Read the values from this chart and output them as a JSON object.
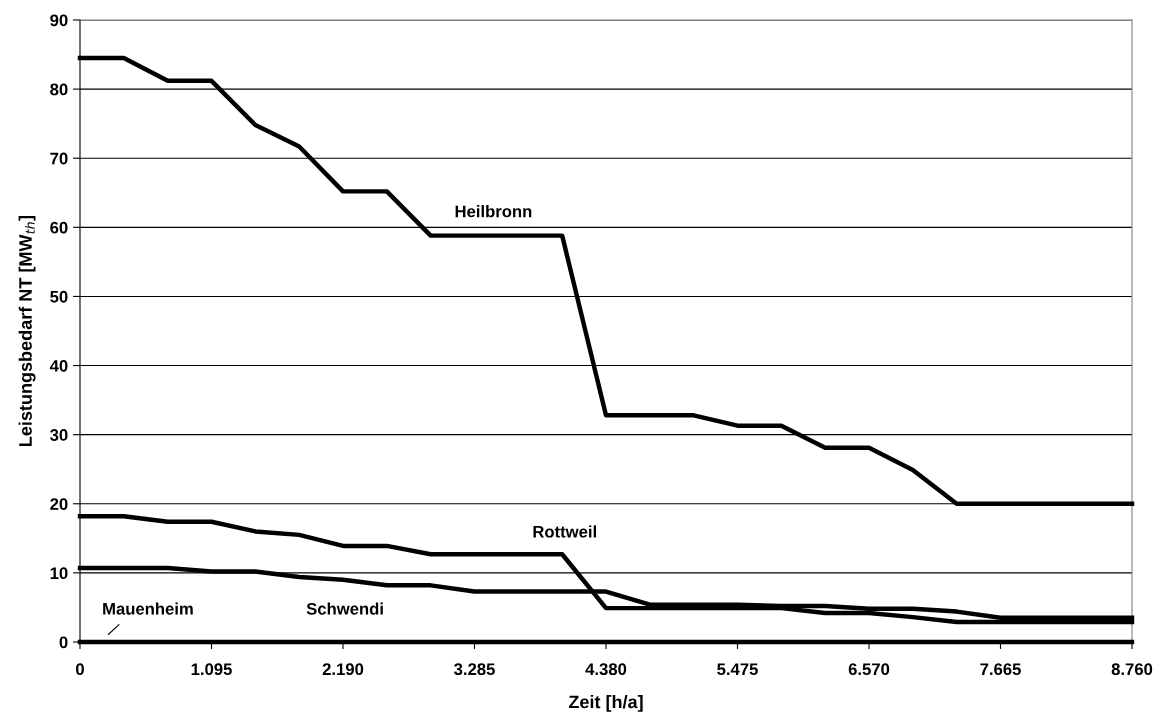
{
  "chart_data": {
    "type": "line",
    "xlabel": "Zeit [h/a]",
    "ylabel": "Leistungsbedarf NT [MW$_{th}$]",
    "x": [
      0,
      365,
      730,
      1095,
      1460,
      1825,
      2190,
      2555,
      2920,
      3285,
      3650,
      4015,
      4380,
      4745,
      5110,
      5475,
      5840,
      6205,
      6570,
      6935,
      7300,
      7665,
      8030,
      8395,
      8760
    ],
    "series": [
      {
        "name": "Heilbronn",
        "color": "#000000",
        "values": [
          84.5,
          84.5,
          81.2,
          81.2,
          74.8,
          71.7,
          65.2,
          65.2,
          58.8,
          58.8,
          58.8,
          58.8,
          32.8,
          32.8,
          32.8,
          31.3,
          31.3,
          28.1,
          28.1,
          24.9,
          20,
          20,
          20,
          20,
          20
        ]
      },
      {
        "name": "Rottweil",
        "color": "#000000",
        "values": [
          18.2,
          18.2,
          17.4,
          17.4,
          16.0,
          15.5,
          13.9,
          13.9,
          12.7,
          12.7,
          12.7,
          12.7,
          4.9,
          4.9,
          4.9,
          4.9,
          4.9,
          4.2,
          4.2,
          3.6,
          2.9,
          2.9,
          2.9,
          2.9,
          2.9
        ]
      },
      {
        "name": "Schwendi",
        "color": "#000000",
        "values": [
          10.7,
          10.7,
          10.7,
          10.2,
          10.2,
          9.4,
          9.0,
          8.2,
          8.2,
          7.3,
          7.3,
          7.3,
          7.3,
          5.4,
          5.4,
          5.4,
          5.2,
          5.2,
          4.8,
          4.8,
          4.4,
          3.5,
          3.5,
          3.5,
          3.5
        ]
      },
      {
        "name": "Mauenheim",
        "color": "#000000",
        "values": [
          0,
          0,
          0,
          0,
          0,
          0,
          0,
          0,
          0,
          0,
          0,
          0,
          0,
          0,
          0,
          0,
          0,
          0,
          0,
          0,
          0,
          0,
          0,
          0,
          0
        ]
      }
    ],
    "xlim": [
      0,
      8760
    ],
    "xticks": [
      0,
      {
        "value": 1095,
        "label": "1.095"
      },
      {
        "value": 2190,
        "label": "2.190"
      },
      {
        "value": 3285,
        "label": "3.285"
      },
      {
        "value": 4380,
        "label": "4.380"
      },
      {
        "value": 5475,
        "label": "5.475"
      },
      {
        "value": 6570,
        "label": "6.570"
      },
      {
        "value": 7665,
        "label": "7.665"
      },
      {
        "value": 8760,
        "label": "8.760"
      }
    ],
    "ylim": [
      0,
      90
    ],
    "yticks": [
      0,
      10,
      20,
      30,
      40,
      50,
      60,
      70,
      80,
      90
    ],
    "grid": "y",
    "legend": false,
    "marker": "none",
    "line_style": "solid"
  }
}
